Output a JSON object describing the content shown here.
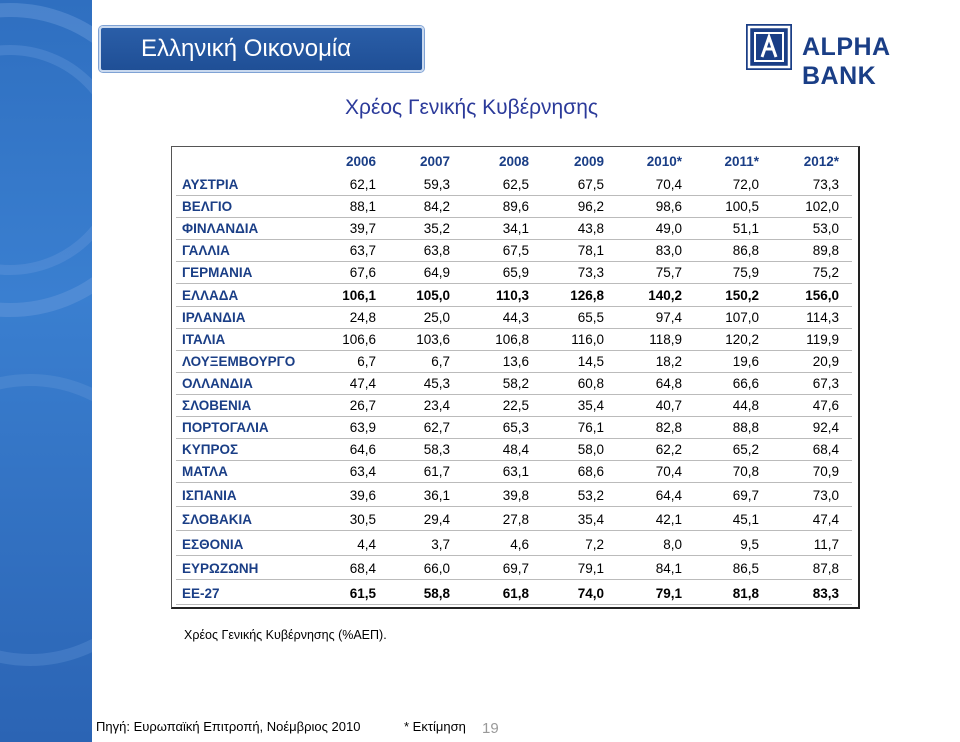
{
  "slide_title": "Ελληνική Οικονομία",
  "logo_text": "ALPHA BANK",
  "heading": "Χρέος Γενικής Κυβέρνησης",
  "table": {
    "columns": [
      "2006",
      "2007",
      "2008",
      "2009",
      "2010*",
      "2011*",
      "2012*"
    ],
    "rows": [
      {
        "label": "ΑΥΣΤΡΙΑ",
        "values": [
          "62,1",
          "59,3",
          "62,5",
          "67,5",
          "70,4",
          "72,0",
          "73,3"
        ]
      },
      {
        "label": "ΒΕΛΓΙΟ",
        "values": [
          "88,1",
          "84,2",
          "89,6",
          "96,2",
          "98,6",
          "100,5",
          "102,0"
        ]
      },
      {
        "label": "ΦΙΝΛΑΝΔΙΑ",
        "values": [
          "39,7",
          "35,2",
          "34,1",
          "43,8",
          "49,0",
          "51,1",
          "53,0"
        ]
      },
      {
        "label": "ΓΑΛΛΙΑ",
        "values": [
          "63,7",
          "63,8",
          "67,5",
          "78,1",
          "83,0",
          "86,8",
          "89,8"
        ]
      },
      {
        "label": "ΓΕΡΜΑΝΙΑ",
        "values": [
          "67,6",
          "64,9",
          "65,9",
          "73,3",
          "75,7",
          "75,9",
          "75,2"
        ]
      },
      {
        "label": "ΕΛΛΑΔΑ",
        "values": [
          "106,1",
          "105,0",
          "110,3",
          "126,8",
          "140,2",
          "150,2",
          "156,0"
        ],
        "bold": true
      },
      {
        "label": "ΙΡΛΑΝΔΙΑ",
        "values": [
          "24,8",
          "25,0",
          "44,3",
          "65,5",
          "97,4",
          "107,0",
          "114,3"
        ]
      },
      {
        "label": "ΙΤΑΛΙΑ",
        "values": [
          "106,6",
          "103,6",
          "106,8",
          "116,0",
          "118,9",
          "120,2",
          "119,9"
        ]
      },
      {
        "label": "ΛΟΥΞΕΜΒΟΥΡΓΟ",
        "values": [
          "6,7",
          "6,7",
          "13,6",
          "14,5",
          "18,2",
          "19,6",
          "20,9"
        ]
      },
      {
        "label": "ΟΛΛΑΝΔΙΑ",
        "values": [
          "47,4",
          "45,3",
          "58,2",
          "60,8",
          "64,8",
          "66,6",
          "67,3"
        ]
      },
      {
        "label": "ΣΛΟΒΕΝΙΑ",
        "values": [
          "26,7",
          "23,4",
          "22,5",
          "35,4",
          "40,7",
          "44,8",
          "47,6"
        ]
      },
      {
        "label": "ΠΟΡΤΟΓΑΛΙΑ",
        "values": [
          "63,9",
          "62,7",
          "65,3",
          "76,1",
          "82,8",
          "88,8",
          "92,4"
        ]
      },
      {
        "label": "ΚΥΠΡΟΣ",
        "values": [
          "64,6",
          "58,3",
          "48,4",
          "58,0",
          "62,2",
          "65,2",
          "68,4"
        ]
      },
      {
        "label": "ΜΑΤΛΑ",
        "values": [
          "63,4",
          "61,7",
          "63,1",
          "68,6",
          "70,4",
          "70,8",
          "70,9"
        ]
      },
      {
        "label": "ΙΣΠΑΝΙΑ",
        "values": [
          "39,6",
          "36,1",
          "39,8",
          "53,2",
          "64,4",
          "69,7",
          "73,0"
        ]
      },
      {
        "label": "ΣΛΟΒΑΚΙΑ",
        "values": [
          "30,5",
          "29,4",
          "27,8",
          "35,4",
          "42,1",
          "45,1",
          "47,4"
        ]
      },
      {
        "label": "ΕΣΘΟΝΙΑ",
        "values": [
          "4,4",
          "3,7",
          "4,6",
          "7,2",
          "8,0",
          "9,5",
          "11,7"
        ]
      },
      {
        "label": "ΕΥΡΩΖΩΝΗ",
        "values": [
          "68,4",
          "66,0",
          "69,7",
          "79,1",
          "84,1",
          "86,5",
          "87,8"
        ]
      },
      {
        "label": "ΕΕ-27",
        "values": [
          "61,5",
          "58,8",
          "61,8",
          "74,0",
          "79,1",
          "81,8",
          "83,3"
        ],
        "bold": true
      }
    ]
  },
  "footnote": "Χρέος  Γενικής Κυβέρνησης (%ΑΕΠ).",
  "source": "Πηγή: Ευρωπαϊκή Επιτροπή, Νοέμβριος 2010",
  "estimate_note": "* Εκτίμηση",
  "page_number": "19",
  "colors": {
    "sidebar": "#2f6fc0",
    "title_box": "#2a5ea8",
    "heading": "#2b3a9a",
    "label": "#1a3e86"
  }
}
